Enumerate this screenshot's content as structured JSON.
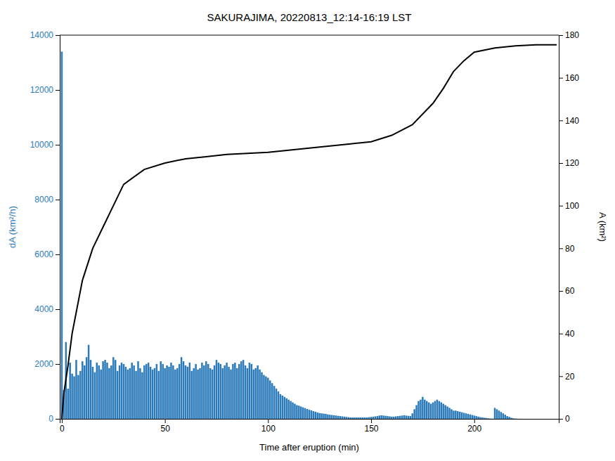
{
  "chart_data": {
    "type": "bar",
    "title": "SAKURAJIMA, 20220813_12:14-16:19 LST",
    "xlabel": "Time after eruption (min)",
    "ylabel": "dA (km²/h)",
    "y2label": "A (km²)",
    "xlim": [
      -1,
      241
    ],
    "xticks": [
      0,
      50,
      100,
      150,
      200
    ],
    "ylim": [
      0,
      14000
    ],
    "yticks": [
      0,
      2000,
      4000,
      6000,
      8000,
      10000,
      12000,
      14000
    ],
    "y2lim": [
      0,
      180
    ],
    "y2ticks": [
      0,
      20,
      40,
      60,
      80,
      100,
      120,
      140,
      160,
      180
    ],
    "grid": false,
    "series": [
      {
        "type": "bar",
        "color": "#2b7bba",
        "x": [
          0,
          1,
          2,
          3,
          4,
          5,
          6,
          7,
          8,
          9,
          10,
          11,
          12,
          13,
          14,
          15,
          16,
          17,
          18,
          19,
          20,
          21,
          22,
          23,
          24,
          25,
          26,
          27,
          28,
          29,
          30,
          31,
          32,
          33,
          34,
          35,
          36,
          37,
          38,
          39,
          40,
          41,
          42,
          43,
          44,
          45,
          46,
          47,
          48,
          49,
          50,
          51,
          52,
          53,
          54,
          55,
          56,
          57,
          58,
          59,
          60,
          61,
          62,
          63,
          64,
          65,
          66,
          67,
          68,
          69,
          70,
          71,
          72,
          73,
          74,
          75,
          76,
          77,
          78,
          79,
          80,
          81,
          82,
          83,
          84,
          85,
          86,
          87,
          88,
          89,
          90,
          91,
          92,
          93,
          94,
          95,
          96,
          97,
          98,
          99,
          100,
          101,
          102,
          103,
          104,
          105,
          106,
          107,
          108,
          109,
          110,
          111,
          112,
          113,
          114,
          115,
          116,
          117,
          118,
          119,
          120,
          121,
          122,
          123,
          124,
          125,
          126,
          127,
          128,
          129,
          130,
          131,
          132,
          133,
          134,
          135,
          136,
          137,
          138,
          139,
          140,
          141,
          142,
          143,
          144,
          145,
          146,
          147,
          148,
          149,
          150,
          151,
          152,
          153,
          154,
          155,
          156,
          157,
          158,
          159,
          160,
          161,
          162,
          163,
          164,
          165,
          166,
          167,
          168,
          169,
          170,
          171,
          172,
          173,
          174,
          175,
          176,
          177,
          178,
          179,
          180,
          181,
          182,
          183,
          184,
          185,
          186,
          187,
          188,
          189,
          190,
          191,
          192,
          193,
          194,
          195,
          196,
          197,
          198,
          199,
          200,
          201,
          202,
          203,
          204,
          205,
          206,
          207,
          208,
          209,
          210,
          211,
          212,
          213,
          214,
          215,
          216,
          217,
          218,
          219,
          220,
          221,
          222,
          223,
          224
        ],
        "values": [
          13400,
          1050,
          2800,
          1100,
          2050,
          1650,
          1550,
          2150,
          1600,
          1750,
          2100,
          1950,
          2250,
          2700,
          2150,
          1900,
          1700,
          2050,
          1950,
          1800,
          2100,
          2150,
          2050,
          1850,
          1950,
          2250,
          2150,
          1750,
          1950,
          2050,
          2000,
          1900,
          1800,
          1850,
          2050,
          1950,
          1750,
          2100,
          1850,
          1700,
          1950,
          2000,
          2050,
          1900,
          1800,
          1850,
          2000,
          1750,
          2100,
          2000,
          1850,
          1950,
          1900,
          2050,
          1950,
          1800,
          1850,
          2000,
          2250,
          2100,
          1950,
          1900,
          2050,
          1750,
          1850,
          2000,
          1800,
          1850,
          2050,
          1950,
          2100,
          2000,
          1850,
          1800,
          1950,
          2150,
          2050,
          2000,
          1850,
          1950,
          2050,
          1900,
          1800,
          2000,
          2050,
          1850,
          2000,
          2100,
          2150,
          1950,
          1850,
          2050,
          2000,
          1800,
          1850,
          1950,
          1800,
          1700,
          1600,
          1550,
          1500,
          1400,
          1300,
          1200,
          1100,
          1000,
          900,
          850,
          800,
          750,
          700,
          650,
          600,
          550,
          500,
          480,
          450,
          420,
          390,
          360,
          330,
          310,
          280,
          260,
          230,
          210,
          200,
          190,
          180,
          160,
          150,
          140,
          130,
          120,
          110,
          100,
          90,
          80,
          70,
          60,
          50,
          50,
          50,
          50,
          50,
          50,
          50,
          50,
          50,
          60,
          70,
          80,
          90,
          100,
          120,
          130,
          120,
          110,
          100,
          90,
          80,
          80,
          90,
          100,
          110,
          120,
          130,
          120,
          110,
          100,
          200,
          350,
          500,
          650,
          700,
          800,
          700,
          650,
          600,
          550,
          600,
          650,
          700,
          650,
          600,
          550,
          500,
          450,
          400,
          350,
          300,
          300,
          280,
          260,
          240,
          220,
          200,
          180,
          160,
          140,
          120,
          100,
          80,
          60,
          50,
          40,
          30,
          20,
          10,
          5,
          400,
          350,
          300,
          250,
          200,
          150,
          100,
          70,
          40,
          20,
          10,
          5,
          3,
          2,
          1
        ]
      },
      {
        "type": "line",
        "color": "#000000",
        "axis": "y2",
        "x": [
          0,
          1,
          3,
          5,
          10,
          15,
          20,
          25,
          30,
          40,
          50,
          60,
          70,
          80,
          90,
          100,
          110,
          120,
          130,
          140,
          150,
          160,
          170,
          180,
          185,
          190,
          195,
          200,
          210,
          220,
          230,
          240
        ],
        "values": [
          0,
          12,
          25,
          40,
          65,
          80,
          90,
          100,
          110,
          117,
          120,
          122,
          123,
          124,
          124.5,
          125,
          126,
          127,
          128,
          129,
          130,
          133,
          138,
          148,
          155,
          163,
          168,
          172,
          174,
          175,
          175.5,
          175.5
        ]
      }
    ]
  }
}
